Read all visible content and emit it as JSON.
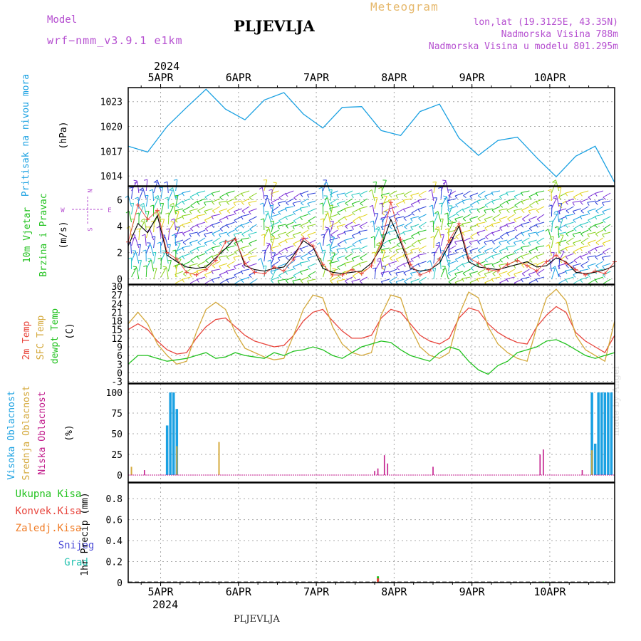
{
  "header": {
    "model_label": "Model",
    "model_name": "wrf−nmm_v3.9.1  e1km",
    "title": "PLJEVLJA",
    "meteogram": "Meteogram",
    "lonlat": "lon,lat (19.3125E, 43.35N)",
    "elevation": "Nadmorska Visina 788m",
    "model_elevation": "Nadmorska Visina u modelu 801.295m",
    "year_top": "2024",
    "year_bottom": "2024",
    "footer_station": "PLJEVLJA",
    "watermark": "made by Angel"
  },
  "colors": {
    "pressure": "#1ba1e2",
    "temp2m": "#e8453c",
    "sfc": "#d4a93c",
    "dew": "#22c21f",
    "high": "#1ba1e2",
    "medium": "#d4a93c",
    "low": "#c21d8c",
    "total_precip": "#22c21f",
    "conv_precip": "#e8453c",
    "frozen_precip": "#f07c26",
    "snow": "#4b4bd6",
    "hail": "#26c2b0",
    "header_purple": "#b54fd0",
    "header_gold": "#e6b86b"
  },
  "chart_data": [
    {
      "type": "line",
      "panel": "pressure",
      "ylabel": [
        "Pritisak na nivou mora",
        "(hPa)"
      ],
      "unit_hint": "(hPa)",
      "x_ticks": [
        "5APR",
        "6APR",
        "7APR",
        "8APR",
        "9APR",
        "10APR"
      ],
      "yticks": [
        1014,
        1017,
        1020,
        1023
      ],
      "ylim": [
        1012.8,
        1024.7
      ],
      "x_hours": [
        0,
        6,
        12,
        18,
        24,
        30,
        36,
        42,
        48,
        54,
        60,
        66,
        72,
        78,
        84,
        90,
        96,
        102,
        108,
        114,
        120,
        126,
        132,
        138,
        144,
        150
      ],
      "series": [
        {
          "values": [
            1017.6,
            1016.9,
            1020.0,
            1022.3,
            1024.5,
            1022.1,
            1020.8,
            1023.2,
            1024.1,
            1021.5,
            1019.8,
            1022.3,
            1022.4,
            1019.5,
            1018.9,
            1021.8,
            1022.7,
            1018.6,
            1016.5,
            1018.3,
            1018.7,
            1016.2,
            1013.9,
            1016.4,
            1017.6,
            1013.2
          ]
        }
      ]
    },
    {
      "type": "line",
      "panel": "wind",
      "ylabel": [
        "10m Vjetar",
        "Brzina i Pravac",
        "(m/s)"
      ],
      "compass_labels": [
        "N",
        "W",
        "E",
        "S"
      ],
      "yticks": [
        0,
        2,
        4,
        6
      ],
      "ylim": [
        -0.4,
        7.0
      ],
      "x_hours": [
        0,
        3,
        6,
        9,
        12,
        15,
        18,
        21,
        24,
        27,
        30,
        33,
        36,
        39,
        42,
        45,
        48,
        51,
        54,
        57,
        60,
        63,
        66,
        69,
        72,
        75,
        78,
        81,
        84,
        87,
        90,
        93,
        96,
        99,
        102,
        105,
        108,
        111,
        114,
        117,
        120,
        123,
        126,
        129,
        132,
        135,
        138,
        141,
        144,
        147,
        150
      ],
      "series": [
        {
          "values": [
            2.5,
            4.2,
            3.5,
            4.8,
            1.8,
            1.3,
            0.9,
            0.8,
            0.9,
            1.6,
            2.3,
            3.1,
            1.0,
            0.7,
            0.6,
            0.8,
            0.9,
            1.8,
            2.9,
            2.4,
            0.8,
            0.5,
            0.4,
            0.5,
            0.6,
            1.2,
            2.4,
            4.5,
            2.8,
            0.8,
            0.6,
            0.7,
            1.2,
            2.6,
            4.0,
            1.3,
            0.9,
            0.8,
            0.7,
            0.9,
            1.1,
            1.3,
            0.9,
            1.0,
            1.6,
            1.3,
            0.5,
            0.4,
            0.5,
            0.7,
            1.0
          ]
        },
        {
          "values": [
            2.8,
            5.6,
            4.5,
            5.2,
            2.0,
            1.5,
            0.5,
            0.3,
            0.7,
            1.4,
            2.8,
            3.0,
            1.2,
            0.5,
            0.4,
            0.9,
            0.6,
            1.5,
            3.1,
            2.5,
            1.1,
            0.3,
            0.3,
            0.7,
            0.4,
            1.0,
            2.7,
            5.8,
            3.0,
            1.1,
            0.3,
            0.6,
            1.5,
            2.9,
            4.2,
            1.6,
            1.2,
            0.7,
            0.6,
            1.1,
            1.4,
            1.0,
            0.6,
            1.3,
            1.8,
            1.2,
            0.7,
            0.3,
            0.6,
            0.4,
            1.3
          ]
        }
      ]
    },
    {
      "type": "line",
      "panel": "temperature",
      "ylabel": [
        "2m Temp",
        "SFC Temp",
        "dewpt Temp",
        "(C)"
      ],
      "unit_hint": "(C)",
      "yticks": [
        -3,
        0,
        3,
        6,
        9,
        12,
        15,
        18,
        21,
        24,
        27,
        30
      ],
      "ylim": [
        -3.6,
        30.5
      ],
      "x_hours": [
        0,
        3,
        6,
        9,
        12,
        15,
        18,
        21,
        24,
        27,
        30,
        33,
        36,
        39,
        42,
        45,
        48,
        51,
        54,
        57,
        60,
        63,
        66,
        69,
        72,
        75,
        78,
        81,
        84,
        87,
        90,
        93,
        96,
        99,
        102,
        105,
        108,
        111,
        114,
        117,
        120,
        123,
        126,
        129,
        132,
        135,
        138,
        141,
        144,
        147,
        150
      ],
      "series": [
        {
          "name": "2m Temp",
          "values": [
            15.0,
            17.0,
            15.0,
            11.0,
            8.0,
            6.5,
            7.0,
            12.0,
            16.0,
            18.5,
            19.0,
            16.0,
            13.0,
            11.0,
            10.0,
            9.0,
            9.5,
            13.0,
            18.0,
            21.0,
            22.0,
            18.0,
            14.5,
            12.0,
            12.0,
            13.0,
            19.0,
            22.0,
            21.0,
            17.0,
            13.0,
            11.0,
            10.0,
            12.0,
            19.0,
            22.5,
            21.5,
            17.0,
            14.0,
            12.0,
            10.5,
            10.0,
            16.0,
            20.0,
            23.0,
            21.0,
            14.0,
            11.0,
            9.0,
            7.0,
            13.0
          ]
        },
        {
          "name": "SFC Temp",
          "values": [
            17.0,
            21.0,
            17.0,
            10.0,
            6.0,
            3.0,
            4.0,
            14.0,
            22.0,
            24.5,
            22.0,
            14.0,
            8.5,
            7.0,
            5.5,
            4.5,
            5.0,
            13.0,
            22.0,
            27.0,
            26.0,
            16.0,
            10.0,
            7.0,
            6.0,
            7.0,
            20.0,
            27.0,
            26.0,
            16.0,
            9.0,
            6.0,
            5.0,
            7.0,
            20.0,
            28.0,
            26.0,
            16.0,
            10.0,
            7.0,
            5.0,
            4.0,
            16.0,
            26.0,
            29.0,
            25.0,
            13.0,
            8.0,
            6.0,
            4.0,
            18.0
          ]
        },
        {
          "values": [
            3.0,
            6.0,
            6.0,
            5.0,
            4.0,
            4.5,
            5.0,
            6.0,
            7.0,
            5.0,
            5.5,
            7.0,
            6.0,
            5.5,
            5.0,
            7.0,
            6.0,
            7.5,
            8.0,
            9.0,
            8.0,
            6.0,
            5.0,
            7.0,
            9.0,
            10.0,
            11.0,
            10.5,
            8.0,
            6.0,
            5.0,
            4.0,
            7.0,
            9.0,
            8.0,
            4.0,
            1.0,
            -0.5,
            2.5,
            4.0,
            7.0,
            8.0,
            9.0,
            11.0,
            11.5,
            10.0,
            8.0,
            6.0,
            5.0,
            6.0,
            7.0
          ]
        }
      ]
    },
    {
      "type": "bar",
      "panel": "clouds",
      "ylabel": [
        "Visoka Oblacnost",
        "Srednja Oblacnost",
        "Niska Oblacnost",
        "(%)"
      ],
      "unit_hint": "(%)",
      "yticks": [
        0,
        25,
        50,
        75,
        100
      ],
      "ylim": [
        0,
        100
      ],
      "series": [
        {
          "name": "high",
          "points": [
            [
              12,
              60
            ],
            [
              13,
              100
            ],
            [
              14,
              100
            ],
            [
              15,
              80
            ],
            [
              143,
              100
            ],
            [
              144,
              38
            ],
            [
              145,
              100
            ],
            [
              146,
              100
            ],
            [
              147,
              100
            ],
            [
              148,
              100
            ],
            [
              149,
              100
            ]
          ]
        },
        {
          "name": "medium",
          "points": [
            [
              1,
              10
            ],
            [
              15,
              35
            ],
            [
              28,
              40
            ],
            [
              143,
              30
            ]
          ]
        },
        {
          "name": "low",
          "points": [
            [
              5,
              6
            ],
            [
              76,
              5
            ],
            [
              77,
              8
            ],
            [
              79,
              24
            ],
            [
              80,
              14
            ],
            [
              94,
              10
            ],
            [
              127,
              25
            ],
            [
              128,
              31
            ],
            [
              140,
              6
            ]
          ]
        }
      ]
    },
    {
      "type": "bar",
      "panel": "precipitation",
      "ylabel": [
        "1hr Precip",
        "(mm)"
      ],
      "legend": [
        "Ukupna Kisa",
        "Konvek.Kisa",
        "Zaledj.Kisa",
        "Snijeg",
        "Grad"
      ],
      "yticks": [
        0,
        0.2,
        0.4,
        0.6,
        0.8
      ],
      "ylim": [
        0,
        0.95
      ],
      "series": [
        {
          "name": "Ukupna Kisa",
          "points": [
            [
              77,
              0.06
            ],
            [
              128,
              0.01
            ]
          ]
        },
        {
          "name": "Konvek.Kisa",
          "points": [
            [
              77,
              0.04
            ]
          ]
        }
      ]
    }
  ]
}
